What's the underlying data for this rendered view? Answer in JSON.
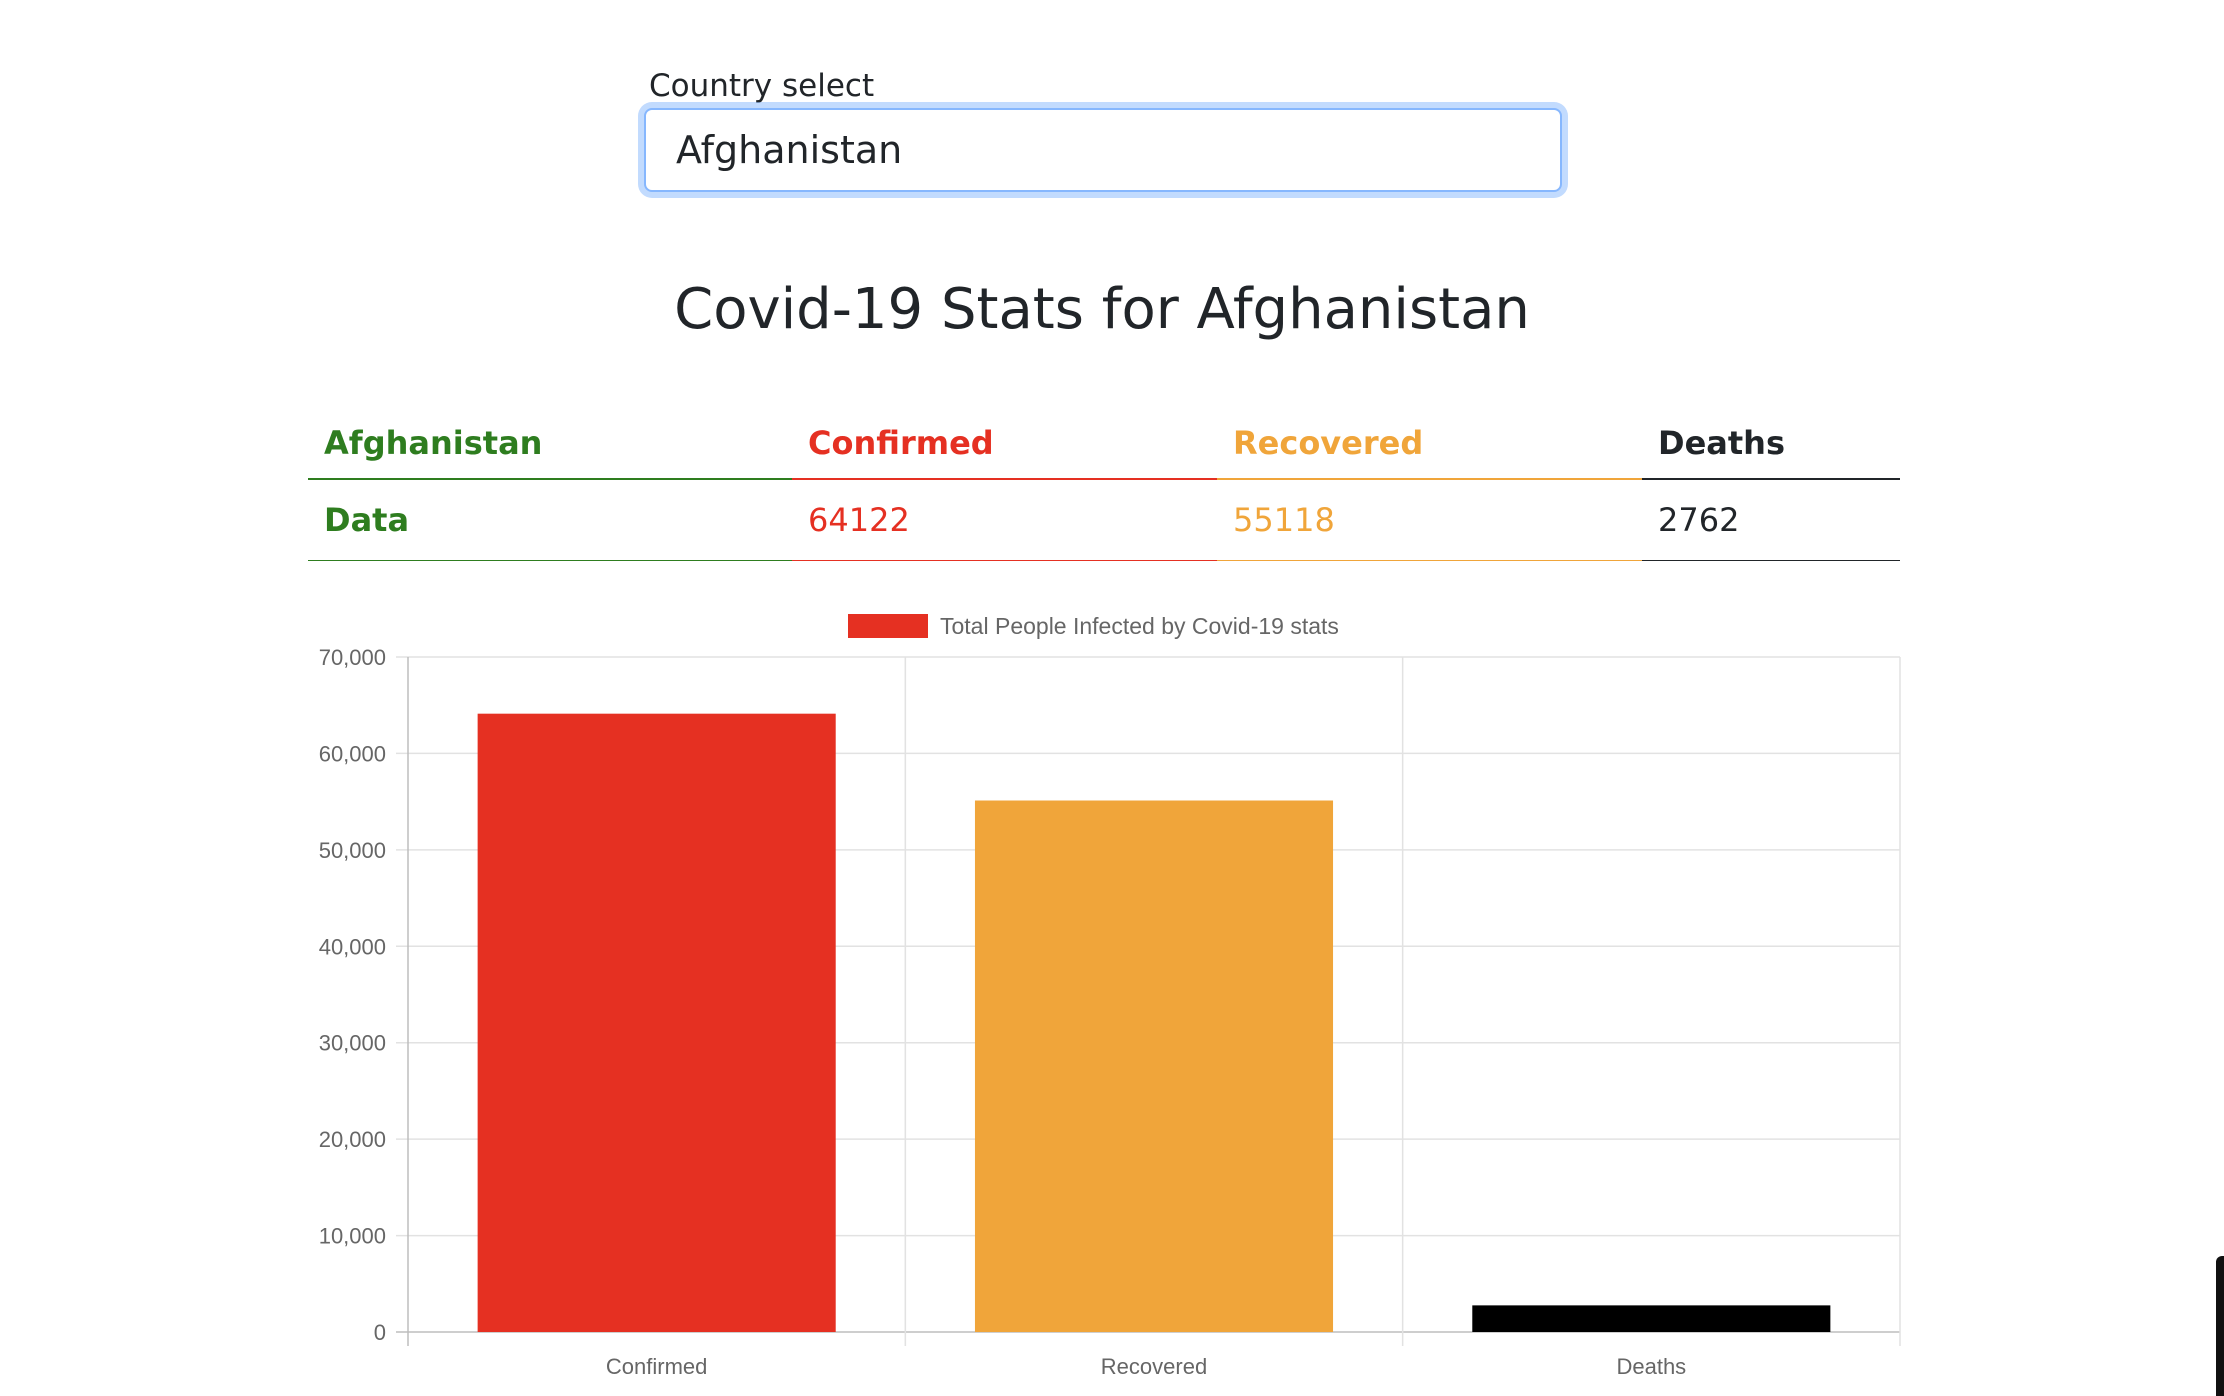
{
  "country_select": {
    "label": "Country select",
    "value": "Afghanistan"
  },
  "title": "Covid-19 Stats for Afghanistan",
  "stats_table": {
    "headers": [
      "Afghanistan",
      "Confirmed",
      "Recovered",
      "Deaths"
    ],
    "row": [
      "Data",
      "64122",
      "55118",
      "2762"
    ]
  },
  "colors": {
    "green": "#2e7d1f",
    "confirmed": "#e53022",
    "recovered": "#f0a53a",
    "deaths": "#000000"
  },
  "chart_data": {
    "type": "bar",
    "categories": [
      "Confirmed",
      "Recovered",
      "Deaths"
    ],
    "series": [
      {
        "name": "Total People Infected by Covid-19 stats",
        "values": [
          64122,
          55118,
          2762
        ],
        "colors": [
          "#e53022",
          "#f0a53a",
          "#000000"
        ]
      }
    ],
    "ylim": [
      0,
      70000
    ],
    "yticks": [
      0,
      10000,
      20000,
      30000,
      40000,
      50000,
      60000,
      70000
    ],
    "ytick_labels": [
      "0",
      "10,000",
      "20,000",
      "30,000",
      "40,000",
      "50,000",
      "60,000",
      "70,000"
    ],
    "legend": "top",
    "grid": true
  }
}
